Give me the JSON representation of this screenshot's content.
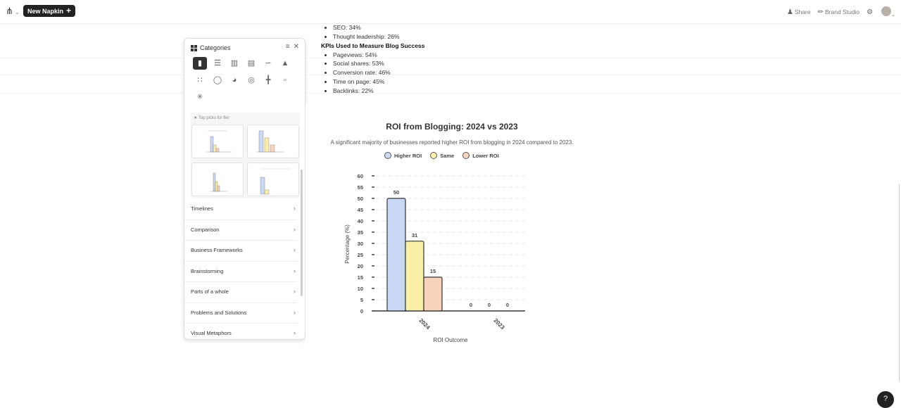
{
  "topbar": {
    "new_napkin": "New Napkin",
    "share": "Share",
    "brand_studio": "Brand Studio"
  },
  "doc": {
    "list1": [
      "SEO: 34%",
      "Thought leadership: 26%"
    ],
    "heading": "KPIs Used to Measure Blog Success",
    "list2": [
      "Pageviews: 54%",
      "Social shares: 53%",
      "Conversion rate: 46%",
      "Time on page: 45%",
      "Backlinks: 22%"
    ]
  },
  "panel": {
    "title": "Categories",
    "picks_label": "Top picks for fler",
    "categories": [
      "Timelines",
      "Comparison",
      "Business Frameworks",
      "Brainstorming",
      "Parts of a whole",
      "Problems and Solutions",
      "Visual Metaphors"
    ]
  },
  "chart_data": {
    "type": "bar",
    "title": "ROI from Blogging: 2024 vs 2023",
    "subtitle": "A significant majority of businesses reported higher ROI from blogging in 2024 compared to 2023.",
    "xlabel": "ROI Outcome",
    "ylabel": "Percentage (%)",
    "categories": [
      "2024",
      "2023"
    ],
    "ylim": [
      0,
      60
    ],
    "yticks": [
      0,
      5,
      10,
      15,
      20,
      25,
      30,
      35,
      40,
      45,
      50,
      55,
      60
    ],
    "grid": true,
    "legend_position": "top",
    "series": [
      {
        "name": "Higher ROI",
        "values": [
          50,
          0
        ],
        "color": "#c9d8f5"
      },
      {
        "name": "Same",
        "values": [
          31,
          0
        ],
        "color": "#fbefa6"
      },
      {
        "name": "Lower ROI",
        "values": [
          15,
          0
        ],
        "color": "#f8d2bd"
      }
    ]
  }
}
